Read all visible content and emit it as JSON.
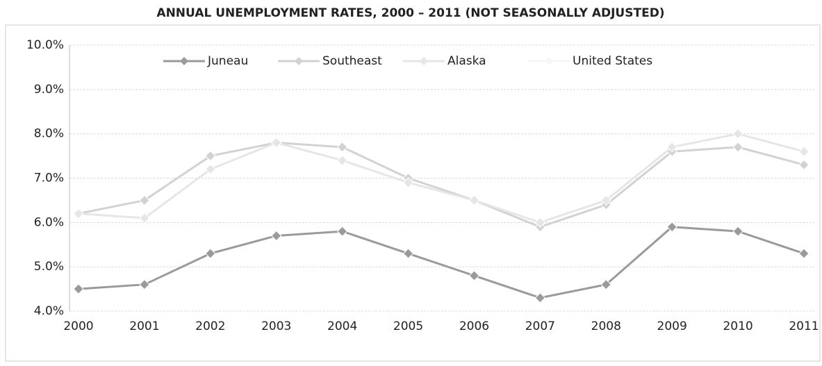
{
  "chart_data": {
    "type": "line",
    "title": "ANNUAL UNEMPLOYMENT RATES, 2000 – 2011 (NOT SEASONALLY ADJUSTED)",
    "categories": [
      "2000",
      "2001",
      "2002",
      "2003",
      "2004",
      "2005",
      "2006",
      "2007",
      "2008",
      "2009",
      "2010",
      "2011"
    ],
    "series": [
      {
        "name": "Juneau",
        "color": "#9a9a9a",
        "values": [
          4.5,
          4.6,
          5.3,
          5.7,
          5.8,
          5.3,
          4.8,
          4.3,
          4.6,
          5.9,
          5.8,
          5.3
        ]
      },
      {
        "name": "Southeast",
        "color": "#d2d2d2",
        "values": [
          6.2,
          6.5,
          7.5,
          7.8,
          7.7,
          7.0,
          6.5,
          5.9,
          6.4,
          7.6,
          7.7,
          7.3
        ]
      },
      {
        "name": "Alaska",
        "color": "#e6e6e6",
        "values": [
          6.2,
          6.1,
          7.2,
          7.8,
          7.4,
          6.9,
          6.5,
          6.0,
          6.5,
          7.7,
          8.0,
          7.6
        ]
      },
      {
        "name": "United States",
        "color": "#f6f6f6",
        "values": [
          null,
          null,
          null,
          null,
          null,
          null,
          null,
          null,
          null,
          null,
          null,
          null
        ]
      }
    ],
    "ylim": [
      4,
      10
    ],
    "yticks": [
      {
        "value": 4,
        "label": "4.0%"
      },
      {
        "value": 5,
        "label": "5.0%"
      },
      {
        "value": 6,
        "label": "6.0%"
      },
      {
        "value": 7,
        "label": "7.0%"
      },
      {
        "value": 8,
        "label": "8.0%"
      },
      {
        "value": 9,
        "label": "9.0%"
      },
      {
        "value": 10,
        "label": "10.0%"
      }
    ],
    "grid": true,
    "legend": "top"
  }
}
